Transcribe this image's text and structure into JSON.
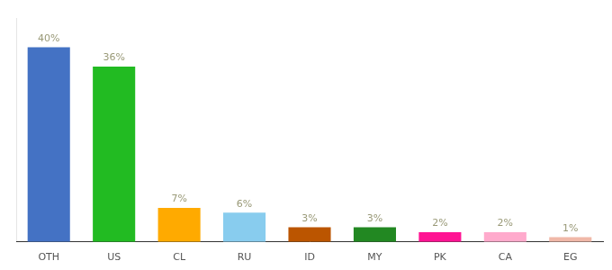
{
  "chart_data": {
    "type": "bar",
    "categories": [
      "OTH",
      "US",
      "CL",
      "RU",
      "ID",
      "MY",
      "PK",
      "CA",
      "EG"
    ],
    "values": [
      40,
      36,
      7,
      6,
      3,
      3,
      2,
      2,
      1
    ],
    "value_labels": [
      "40%",
      "36%",
      "7%",
      "6%",
      "3%",
      "3%",
      "2%",
      "2%",
      "1%"
    ],
    "colors": [
      "#4472c4",
      "#22bb22",
      "#ffaa00",
      "#88ccee",
      "#bb5500",
      "#228822",
      "#ff1493",
      "#ffaacc",
      "#f0b8a8"
    ],
    "ylim": [
      0,
      46
    ],
    "data_labels": true,
    "tick_labels": "x",
    "grid": false
  }
}
